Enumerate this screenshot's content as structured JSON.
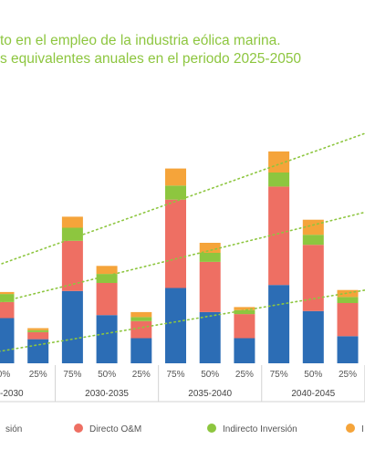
{
  "header": {
    "title_line1": "to en el empleo de la industria eólica marina.",
    "title_line2": "s equivalentes anuales en el periodo 2025-2050"
  },
  "chart_data": {
    "type": "bar",
    "stacked": true,
    "title": "to en el empleo de la industria eólica marina. s equivalentes anuales en el periodo 2025-2050",
    "periods": [
      "-2030",
      "2030-2035",
      "2035-2040",
      "2040-2045"
    ],
    "categories": [
      "0%",
      "25%",
      "75%",
      "50%",
      "25%",
      "75%",
      "50%",
      "25%",
      "75%",
      "50%",
      "25%"
    ],
    "category_period": [
      0,
      0,
      1,
      1,
      1,
      2,
      2,
      2,
      3,
      3,
      3
    ],
    "series": [
      {
        "name": "",
        "color": "#2c6db5",
        "values": [
          45,
          24,
          72,
          48,
          25,
          75,
          51,
          25,
          78,
          52,
          27
        ]
      },
      {
        "name": "Directo O&M",
        "color": "#ee6f63",
        "values": [
          16,
          7,
          50,
          32,
          17,
          88,
          50,
          24,
          98,
          66,
          33
        ]
      },
      {
        "name": "Indirecto Inversión",
        "color": "#8dc63f",
        "values": [
          8,
          2,
          13,
          9,
          4,
          14,
          9,
          4,
          14,
          10,
          6
        ]
      },
      {
        "name": "",
        "color": "#f5a43a",
        "values": [
          2,
          2,
          11,
          8,
          5,
          17,
          10,
          3,
          21,
          15,
          7
        ]
      }
    ],
    "trendlines": [
      {
        "color": "#8dc63f",
        "points": [
          [
            -0.8,
            90
          ],
          [
            11.4,
            240
          ]
        ]
      },
      {
        "color": "#8dc63f",
        "points": [
          [
            -0.8,
            55
          ],
          [
            11.4,
            158
          ]
        ]
      },
      {
        "color": "#8dc63f",
        "points": [
          [
            -0.8,
            8
          ],
          [
            11.4,
            78
          ]
        ]
      }
    ],
    "ylim": [
      0,
      260
    ],
    "grid": false,
    "legend_position": "bottom",
    "legend": [
      "sión",
      "Directo O&M",
      "Indirecto Inversión",
      "I"
    ]
  }
}
